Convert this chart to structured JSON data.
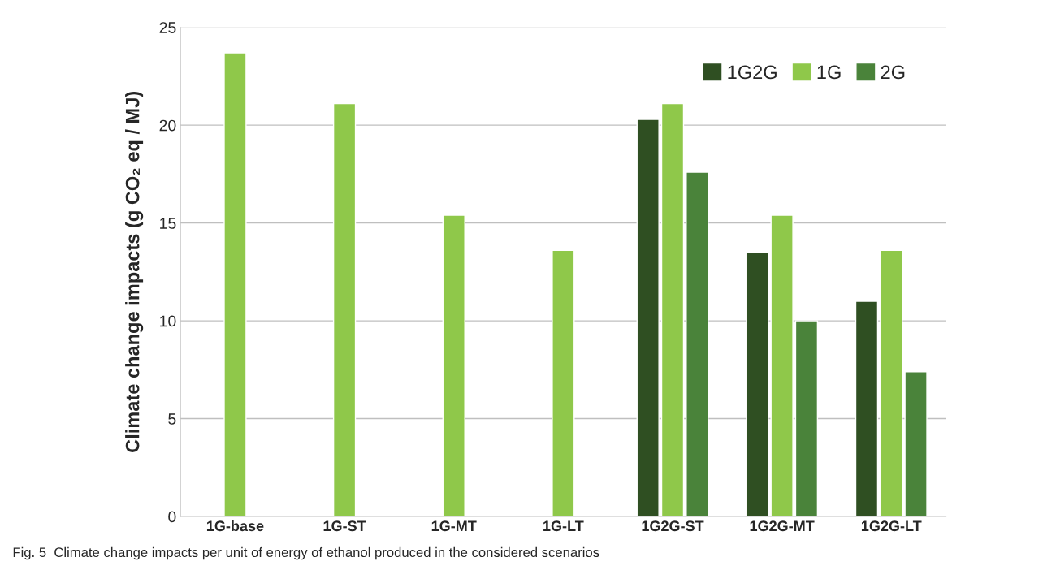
{
  "chart_data": {
    "type": "bar",
    "categories": [
      "1G-base",
      "1G-ST",
      "1G-MT",
      "1G-LT",
      "1G2G-ST",
      "1G2G-MT",
      "1G2G-LT"
    ],
    "series": [
      {
        "name": "1G2G",
        "color": "#2f4f22",
        "values": [
          null,
          null,
          null,
          null,
          20.3,
          13.5,
          11.0
        ]
      },
      {
        "name": "1G",
        "color": "#8fc84a",
        "values": [
          23.7,
          21.1,
          15.4,
          13.6,
          21.1,
          15.4,
          13.6
        ]
      },
      {
        "name": "2G",
        "color": "#4a833a",
        "values": [
          null,
          null,
          null,
          null,
          17.6,
          10.0,
          7.4
        ]
      }
    ],
    "ylabel": "Climate change impacts (g CO₂ eq / MJ)",
    "ylim": [
      0,
      25
    ],
    "yticks": [
      0,
      5,
      10,
      15,
      20,
      25
    ],
    "grid": "y",
    "legend": "top right",
    "annotations": [
      "Fig. 5  Climate change impacts per unit of energy of ethanol produced in the considered scenarios"
    ]
  }
}
